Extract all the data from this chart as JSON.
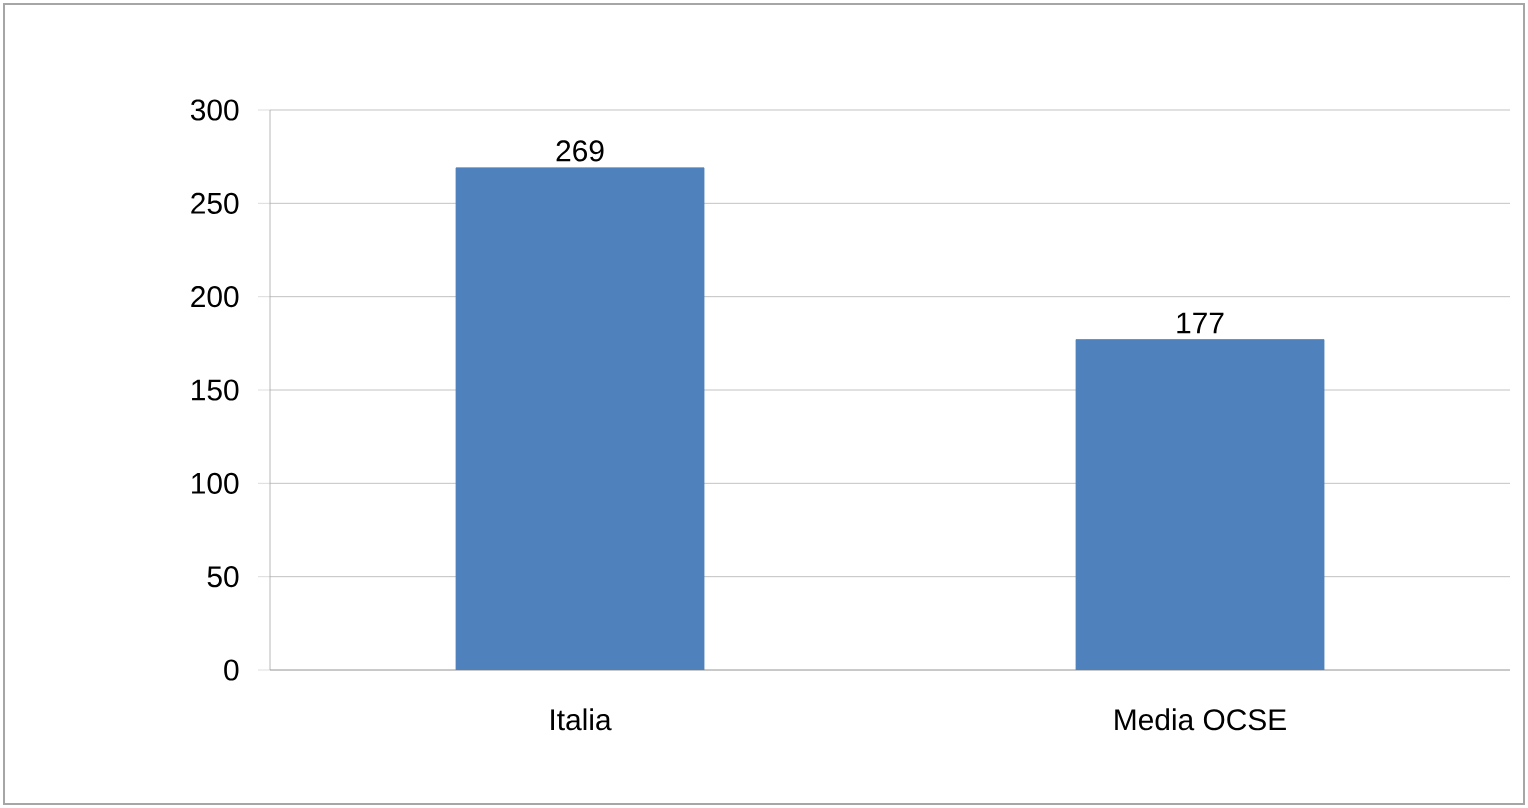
{
  "chart_data": {
    "type": "bar",
    "categories": [
      "Italia",
      "Media OCSE"
    ],
    "values": [
      269,
      177
    ],
    "color": "#4f81bd",
    "ylim": [
      0,
      300
    ],
    "yticks": [
      0,
      50,
      100,
      150,
      200,
      250,
      300
    ],
    "grid": "y",
    "data_labels": true
  }
}
